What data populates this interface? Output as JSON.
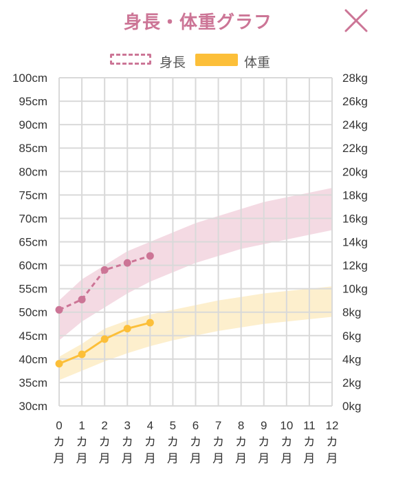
{
  "title": "身長・体重グラフ",
  "close_icon": "close-icon",
  "legend": {
    "height_label": "身長",
    "weight_label": "体重"
  },
  "colors": {
    "height": "#cc7596",
    "height_band": "#f2d3de",
    "weight": "#fcbf39",
    "weight_band": "#fdecc4",
    "grid": "#d9d9d9"
  },
  "chart_data": {
    "type": "line",
    "title": "身長・体重グラフ",
    "x": [
      0,
      1,
      2,
      3,
      4,
      5,
      6,
      7,
      8,
      9,
      10,
      11,
      12
    ],
    "x_tick_labels": [
      [
        "0",
        "カ",
        "月"
      ],
      [
        "1",
        "カ",
        "月"
      ],
      [
        "2",
        "カ",
        "月"
      ],
      [
        "3",
        "カ",
        "月"
      ],
      [
        "4",
        "カ",
        "月"
      ],
      [
        "5",
        "カ",
        "月"
      ],
      [
        "6",
        "カ",
        "月"
      ],
      [
        "7",
        "カ",
        "月"
      ],
      [
        "8",
        "カ",
        "月"
      ],
      [
        "9",
        "カ",
        "月"
      ],
      [
        "10",
        "カ",
        "月"
      ],
      [
        "11",
        "カ",
        "月"
      ],
      [
        "12",
        "カ",
        "月"
      ]
    ],
    "y_left": {
      "unit": "cm",
      "range": [
        30,
        100
      ],
      "step": 5,
      "tick_labels": [
        "100cm",
        "95cm",
        "90cm",
        "85cm",
        "80cm",
        "75cm",
        "70cm",
        "65cm",
        "60cm",
        "55cm",
        "50cm",
        "45cm",
        "40cm",
        "35cm",
        "30cm"
      ]
    },
    "y_right": {
      "unit": "kg",
      "range": [
        0,
        28
      ],
      "step": 2,
      "tick_labels": [
        "28kg",
        "26kg",
        "24kg",
        "22kg",
        "20kg",
        "18kg",
        "16kg",
        "14kg",
        "12kg",
        "10kg",
        "8kg",
        "6kg",
        "4kg",
        "2kg",
        "0kg"
      ]
    },
    "grid": true,
    "legend_position": "top-center",
    "series": [
      {
        "name": "身長",
        "axis": "left",
        "style": "dashed",
        "x": [
          0,
          1,
          2,
          3,
          4
        ],
        "values": [
          50.5,
          52.7,
          59.0,
          60.5,
          62.0
        ]
      },
      {
        "name": "体重",
        "axis": "right",
        "style": "solid",
        "x": [
          0,
          1,
          2,
          3,
          4
        ],
        "values": [
          3.6,
          4.4,
          5.7,
          6.6,
          7.1
        ]
      }
    ],
    "bands": [
      {
        "series": "身長",
        "axis": "left",
        "x": [
          0,
          1,
          2,
          3,
          4,
          5,
          6,
          7,
          8,
          9,
          10,
          11,
          12
        ],
        "lower": [
          44.0,
          48.0,
          51.0,
          54.0,
          56.5,
          58.5,
          60.5,
          62.0,
          63.5,
          64.5,
          65.5,
          66.5,
          67.5
        ],
        "upper": [
          52.5,
          57.0,
          60.0,
          63.0,
          65.0,
          67.0,
          69.0,
          70.5,
          72.0,
          73.5,
          74.5,
          75.5,
          76.5
        ]
      },
      {
        "series": "体重",
        "axis": "right",
        "x": [
          0,
          1,
          2,
          3,
          4,
          5,
          6,
          7,
          8,
          9,
          10,
          11,
          12
        ],
        "lower": [
          2.2,
          3.0,
          3.8,
          4.5,
          5.1,
          5.6,
          6.0,
          6.4,
          6.7,
          7.0,
          7.2,
          7.4,
          7.6
        ],
        "upper": [
          4.2,
          5.3,
          6.6,
          7.3,
          7.8,
          8.2,
          8.6,
          9.0,
          9.3,
          9.6,
          9.8,
          10.0,
          10.2
        ]
      }
    ]
  }
}
